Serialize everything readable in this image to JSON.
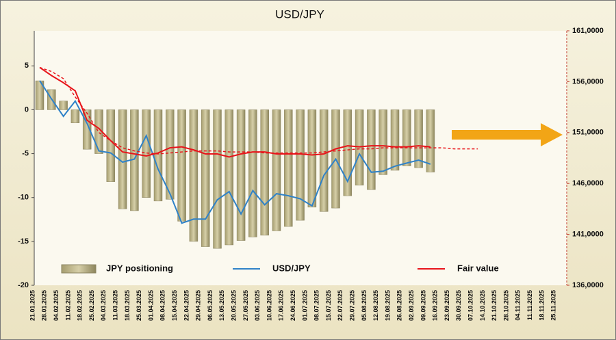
{
  "chart_data": {
    "type": "bar-line",
    "title": "USD/JPY",
    "categories": [
      "21.01.2025",
      "28.01.2025",
      "04.02.2025",
      "11.02.2025",
      "18.02.2025",
      "25.02.2025",
      "04.03.2025",
      "11.03.2025",
      "18.03.2025",
      "25.03.2025",
      "01.04.2025",
      "08.04.2025",
      "15.04.2025",
      "22.04.2025",
      "29.04.2025",
      "06.05.2025",
      "13.05.2025",
      "20.05.2025",
      "27.05.2025",
      "03.06.2025",
      "10.06.2025",
      "17.06.2025",
      "24.06.2025",
      "01.07.2025",
      "08.07.2025",
      "15.07.2025",
      "22.07.2025",
      "29.07.2025",
      "05.08.2025",
      "12.08.2025",
      "19.08.2025",
      "26.08.2025",
      "02.09.2025",
      "09.09.2025",
      "16.09.2025",
      "23.09.2025",
      "30.09.2025",
      "07.10.2025",
      "14.10.2025",
      "21.10.2025",
      "28.10.2025",
      "04.11.2025",
      "11.11.2025",
      "18.11.2025",
      "25.11.2025"
    ],
    "ylim": [
      -20,
      9
    ],
    "yticks": [
      -20,
      -15,
      -10,
      -5,
      0,
      5
    ],
    "y2lim": [
      136,
      161
    ],
    "y2ticks": [
      {
        "value": 136,
        "label": "136,0000"
      },
      {
        "value": 141,
        "label": "141,0000"
      },
      {
        "value": 146,
        "label": "146,0000"
      },
      {
        "value": 151,
        "label": "151,0000"
      },
      {
        "value": 156,
        "label": "156,0000"
      },
      {
        "value": 161,
        "label": "161,0000"
      }
    ],
    "series": [
      {
        "name": "JPY positioning",
        "kind": "bar",
        "color": "#c9c195",
        "values": [
          3.3,
          2.3,
          1.0,
          -1.5,
          -4.5,
          -5.0,
          -8.2,
          -11.3,
          -11.5,
          -10.0,
          -10.4,
          -10.2,
          -12.7,
          -15.0,
          -15.6,
          -15.8,
          -15.4,
          -14.9,
          -14.5,
          -14.3,
          -13.8,
          -13.3,
          -12.6,
          -11.1,
          -11.6,
          -11.2,
          -9.8,
          -8.6,
          -9.1,
          -7.4,
          -6.9,
          -6.4,
          -6.6,
          -7.1,
          null,
          null,
          null,
          null,
          null,
          null,
          null,
          null,
          null,
          null,
          null
        ]
      },
      {
        "name": "USD/JPY",
        "kind": "line",
        "axis": "y2",
        "color": "#2f82c8",
        "values": [
          156.1,
          154.3,
          152.6,
          154.1,
          151.9,
          149.2,
          149.0,
          148.1,
          148.4,
          150.7,
          147.4,
          145.0,
          142.1,
          142.5,
          142.5,
          144.4,
          145.2,
          143.0,
          145.3,
          143.9,
          145.0,
          144.8,
          144.5,
          143.8,
          146.8,
          148.4,
          146.2,
          148.9,
          147.1,
          147.2,
          147.7,
          148.0,
          148.3,
          147.9,
          null,
          null,
          null,
          null,
          null,
          null,
          null,
          null,
          null,
          null,
          null
        ]
      },
      {
        "name": "Fair value",
        "kind": "line",
        "axis": "y2",
        "color": "#e8141a",
        "values": [
          157.4,
          156.6,
          155.9,
          155.1,
          152.2,
          151.4,
          150.2,
          149.1,
          148.9,
          148.7,
          149.0,
          149.5,
          149.6,
          149.3,
          148.9,
          148.9,
          148.6,
          148.9,
          149.1,
          149.1,
          148.9,
          148.9,
          148.9,
          148.8,
          148.9,
          149.4,
          149.7,
          149.6,
          149.7,
          149.7,
          149.6,
          149.6,
          149.7,
          149.6,
          null,
          null,
          null,
          null,
          null,
          null,
          null,
          null,
          null,
          null,
          null
        ],
        "dashed_values": [
          157.4,
          157.0,
          156.3,
          154.5,
          152.9,
          151.0,
          150.2,
          149.5,
          149.2,
          149.0,
          148.9,
          149.0,
          149.1,
          149.2,
          149.2,
          149.2,
          149.1,
          149.1,
          149.1,
          149.0,
          149.0,
          149.0,
          149.0,
          149.0,
          149.1,
          149.2,
          149.3,
          149.4,
          149.4,
          149.5,
          149.5,
          149.5,
          149.5,
          149.5,
          149.5,
          149.4,
          149.4,
          149.4,
          null,
          null,
          null,
          null,
          null,
          null,
          null
        ]
      }
    ]
  }
}
